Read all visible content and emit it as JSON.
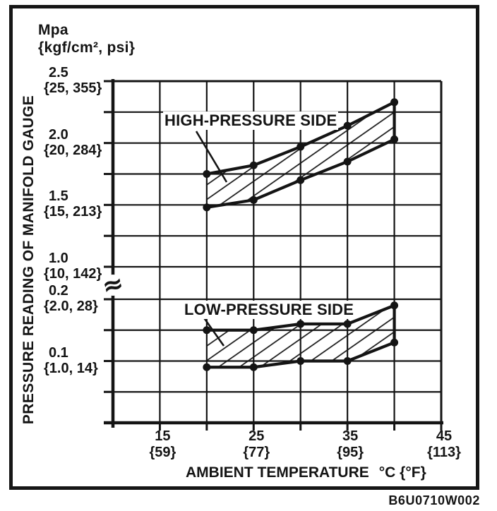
{
  "figure_code": "B6U0710W002",
  "chart_data": {
    "type": "area",
    "title": "",
    "y_title": "PRESSURE READING OF MANIFOLD GAUGE",
    "y_unit_line1": "Mpa",
    "y_unit_line2": "{kgf/cm², psi}",
    "x_title": "AMBIENT TEMPERATURE",
    "x_unit": "°C {°F}",
    "high_band_label": "HIGH-PRESSURE SIDE",
    "low_band_label": "LOW-PRESSURE SIDE",
    "grid": true,
    "hatch_fill": true,
    "marker": "circle",
    "ink_color": "#141414",
    "background": "#ffffff",
    "x_axis": {
      "min": 10,
      "max": 45,
      "grid_step": 5,
      "ticks": [
        {
          "value": 15,
          "label": "15",
          "alt": "{59}"
        },
        {
          "value": 25,
          "label": "25",
          "alt": "{77}"
        },
        {
          "value": 35,
          "label": "35",
          "alt": "{95}"
        },
        {
          "value": 45,
          "label": "45",
          "alt": "{113}"
        }
      ]
    },
    "y_axis": {
      "upper_min": 1.0,
      "upper_max": 2.5,
      "upper_step": 0.25,
      "lower_min": 0,
      "lower_max": 0.2,
      "lower_step": 0.05,
      "break_between": [
        0.2,
        1.0
      ],
      "break_symbol": "≈",
      "ticks": [
        {
          "value": 2.5,
          "label": "2.5",
          "alt": "{25, 355}"
        },
        {
          "value": 2.0,
          "label": "2.0",
          "alt": "{20, 284}"
        },
        {
          "value": 1.5,
          "label": "1.5",
          "alt": "{15, 213}"
        },
        {
          "value": 1.0,
          "label": "1.0",
          "alt": "{10, 142}"
        },
        {
          "value": 0.2,
          "label": "0.2",
          "alt": "{2.0, 28}"
        },
        {
          "value": 0.1,
          "label": "0.1",
          "alt": "{1.0, 14}"
        }
      ]
    },
    "x": [
      20,
      25,
      30,
      35,
      40
    ],
    "series": [
      {
        "name": "high_pressure_upper",
        "values": [
          1.75,
          1.82,
          1.97,
          2.14,
          2.33
        ]
      },
      {
        "name": "high_pressure_lower",
        "values": [
          1.48,
          1.54,
          1.7,
          1.85,
          2.03
        ]
      },
      {
        "name": "low_pressure_upper",
        "values": [
          0.15,
          0.15,
          0.16,
          0.16,
          0.19
        ]
      },
      {
        "name": "low_pressure_lower",
        "values": [
          0.09,
          0.09,
          0.1,
          0.1,
          0.13
        ]
      }
    ]
  }
}
